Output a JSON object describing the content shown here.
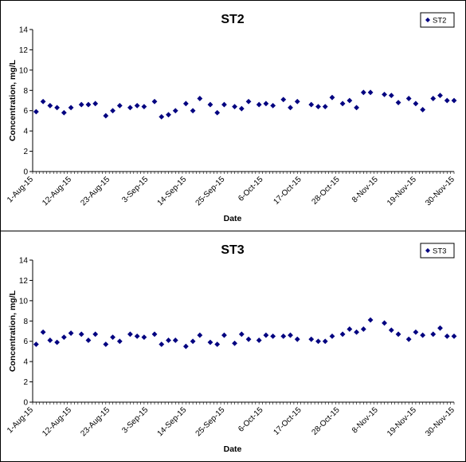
{
  "chart_data": [
    {
      "type": "scatter",
      "title": "ST2",
      "xlabel": "Date",
      "ylabel": "Concentration, mg/L",
      "ylim": [
        0,
        14
      ],
      "yticks": [
        0,
        2,
        4,
        6,
        8,
        10,
        12,
        14
      ],
      "xlim": [
        "2015-08-01",
        "2015-11-30"
      ],
      "xtick_labels": [
        "1-Aug-15",
        "12-Aug-15",
        "23-Aug-15",
        "3-Sep-15",
        "14-Sep-15",
        "25-Sep-15",
        "6-Oct-15",
        "17-Oct-15",
        "28-Oct-15",
        "8-Nov-15",
        "19-Nov-15",
        "30-Nov-15"
      ],
      "grid": false,
      "legend": "top-right",
      "marker": "diamond",
      "marker_color": "#000080",
      "series": [
        {
          "name": "ST2",
          "x": [
            "2015-08-02",
            "2015-08-04",
            "2015-08-06",
            "2015-08-08",
            "2015-08-10",
            "2015-08-12",
            "2015-08-15",
            "2015-08-17",
            "2015-08-19",
            "2015-08-22",
            "2015-08-24",
            "2015-08-26",
            "2015-08-29",
            "2015-08-31",
            "2015-09-02",
            "2015-09-05",
            "2015-09-07",
            "2015-09-09",
            "2015-09-11",
            "2015-09-14",
            "2015-09-16",
            "2015-09-18",
            "2015-09-21",
            "2015-09-23",
            "2015-09-25",
            "2015-09-28",
            "2015-09-30",
            "2015-10-02",
            "2015-10-05",
            "2015-10-07",
            "2015-10-09",
            "2015-10-12",
            "2015-10-14",
            "2015-10-16",
            "2015-10-20",
            "2015-10-22",
            "2015-10-24",
            "2015-10-26",
            "2015-10-29",
            "2015-10-31",
            "2015-11-02",
            "2015-11-04",
            "2015-11-06",
            "2015-11-10",
            "2015-11-12",
            "2015-11-14",
            "2015-11-17",
            "2015-11-19",
            "2015-11-21",
            "2015-11-24",
            "2015-11-26",
            "2015-11-28",
            "2015-11-30"
          ],
          "y": [
            5.9,
            6.9,
            6.5,
            6.3,
            5.8,
            6.3,
            6.6,
            6.6,
            6.7,
            5.5,
            6.0,
            6.5,
            6.3,
            6.5,
            6.4,
            6.9,
            5.4,
            5.6,
            6.0,
            6.7,
            6.0,
            7.2,
            6.6,
            5.8,
            6.6,
            6.4,
            6.2,
            6.9,
            6.6,
            6.7,
            6.5,
            7.1,
            6.3,
            6.9,
            6.6,
            6.4,
            6.4,
            7.3,
            6.7,
            7.0,
            6.3,
            7.8,
            7.8,
            7.6,
            7.5,
            6.8,
            7.2,
            6.7,
            6.1,
            7.2,
            7.5,
            7.0,
            7.0
          ]
        }
      ]
    },
    {
      "type": "scatter",
      "title": "ST3",
      "xlabel": "Date",
      "ylabel": "Concentration, mg/L",
      "ylim": [
        0,
        14
      ],
      "yticks": [
        0,
        2,
        4,
        6,
        8,
        10,
        12,
        14
      ],
      "xlim": [
        "2015-08-01",
        "2015-11-30"
      ],
      "xtick_labels": [
        "1-Aug-15",
        "12-Aug-15",
        "23-Aug-15",
        "3-Sep-15",
        "14-Sep-15",
        "25-Sep-15",
        "6-Oct-15",
        "17-Oct-15",
        "28-Oct-15",
        "8-Nov-15",
        "19-Nov-15",
        "30-Nov-15"
      ],
      "grid": false,
      "legend": "top-right",
      "marker": "diamond",
      "marker_color": "#000080",
      "series": [
        {
          "name": "ST3",
          "x": [
            "2015-08-02",
            "2015-08-04",
            "2015-08-06",
            "2015-08-08",
            "2015-08-10",
            "2015-08-12",
            "2015-08-15",
            "2015-08-17",
            "2015-08-19",
            "2015-08-22",
            "2015-08-24",
            "2015-08-26",
            "2015-08-29",
            "2015-08-31",
            "2015-09-02",
            "2015-09-05",
            "2015-09-07",
            "2015-09-09",
            "2015-09-11",
            "2015-09-14",
            "2015-09-16",
            "2015-09-18",
            "2015-09-21",
            "2015-09-23",
            "2015-09-25",
            "2015-09-28",
            "2015-09-30",
            "2015-10-02",
            "2015-10-05",
            "2015-10-07",
            "2015-10-09",
            "2015-10-12",
            "2015-10-14",
            "2015-10-16",
            "2015-10-20",
            "2015-10-22",
            "2015-10-24",
            "2015-10-26",
            "2015-10-29",
            "2015-10-31",
            "2015-11-02",
            "2015-11-04",
            "2015-11-06",
            "2015-11-10",
            "2015-11-12",
            "2015-11-14",
            "2015-11-17",
            "2015-11-19",
            "2015-11-21",
            "2015-11-24",
            "2015-11-26",
            "2015-11-28",
            "2015-11-30"
          ],
          "y": [
            5.7,
            6.9,
            6.1,
            5.9,
            6.4,
            6.8,
            6.7,
            6.1,
            6.7,
            5.7,
            6.4,
            6.0,
            6.7,
            6.5,
            6.4,
            6.7,
            5.7,
            6.1,
            6.1,
            5.5,
            6.0,
            6.6,
            5.9,
            5.7,
            6.6,
            5.8,
            6.7,
            6.2,
            6.1,
            6.6,
            6.5,
            6.5,
            6.6,
            6.2,
            6.2,
            6.0,
            6.0,
            6.5,
            6.7,
            7.2,
            6.9,
            7.2,
            8.1,
            7.8,
            7.1,
            6.7,
            6.2,
            6.9,
            6.6,
            6.7,
            7.3,
            6.5,
            6.5
          ]
        }
      ]
    }
  ]
}
